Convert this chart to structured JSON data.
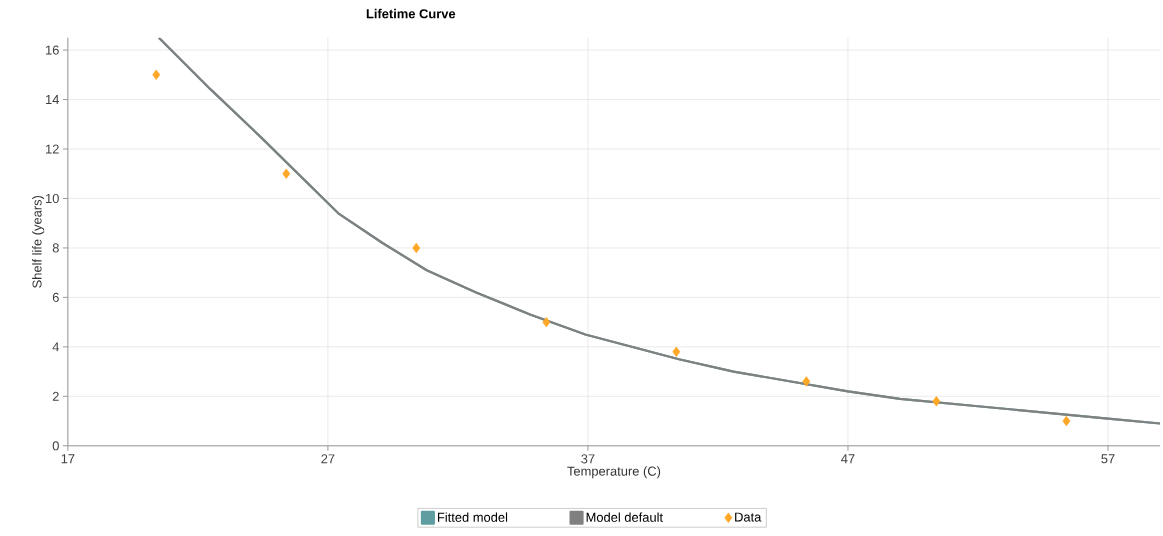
{
  "chart_data": {
    "type": "line",
    "title": "Lifetime Curve",
    "xlabel": "Temperature (C)",
    "ylabel": "Shelf life (years)",
    "xlim": [
      17,
      59
    ],
    "ylim": [
      0,
      16.5
    ],
    "xticks": [
      17,
      27,
      37,
      47,
      57
    ],
    "yticks": [
      0,
      2,
      4,
      6,
      8,
      10,
      12,
      14,
      16
    ],
    "grid": true,
    "legend": "bottom",
    "series": [
      {
        "name": "Fitted model",
        "color": "#5f9ea0",
        "x": [
          20.5,
          22.5,
          24.4,
          27.4,
          29.1,
          30.8,
          32.7,
          34.8,
          36.9,
          40.5,
          42.6,
          47,
          49,
          52,
          57,
          59
        ],
        "values": [
          16.5,
          14.4,
          12.5,
          9.4,
          8.2,
          7.1,
          6.2,
          5.3,
          4.5,
          3.5,
          3.0,
          2.2,
          1.9,
          1.6,
          1.1,
          0.9
        ]
      },
      {
        "name": "Model default",
        "color": "#808080",
        "x": [
          20.5,
          22.5,
          24.4,
          27.4,
          29.1,
          30.8,
          32.7,
          34.8,
          36.9,
          40.5,
          42.6,
          47,
          49,
          52,
          57,
          59
        ],
        "values": [
          16.5,
          14.4,
          12.5,
          9.4,
          8.2,
          7.1,
          6.2,
          5.3,
          4.5,
          3.5,
          3.0,
          2.2,
          1.9,
          1.6,
          1.1,
          0.9
        ]
      },
      {
        "name": "Data",
        "type": "scatter",
        "marker": "diamond",
        "color": "#ffa726",
        "x": [
          20.4,
          25.4,
          30.4,
          35.4,
          40.4,
          45.4,
          50.4,
          55.4
        ],
        "values": [
          15,
          11,
          8,
          5,
          3.8,
          2.6,
          1.8,
          1.0
        ]
      }
    ]
  }
}
